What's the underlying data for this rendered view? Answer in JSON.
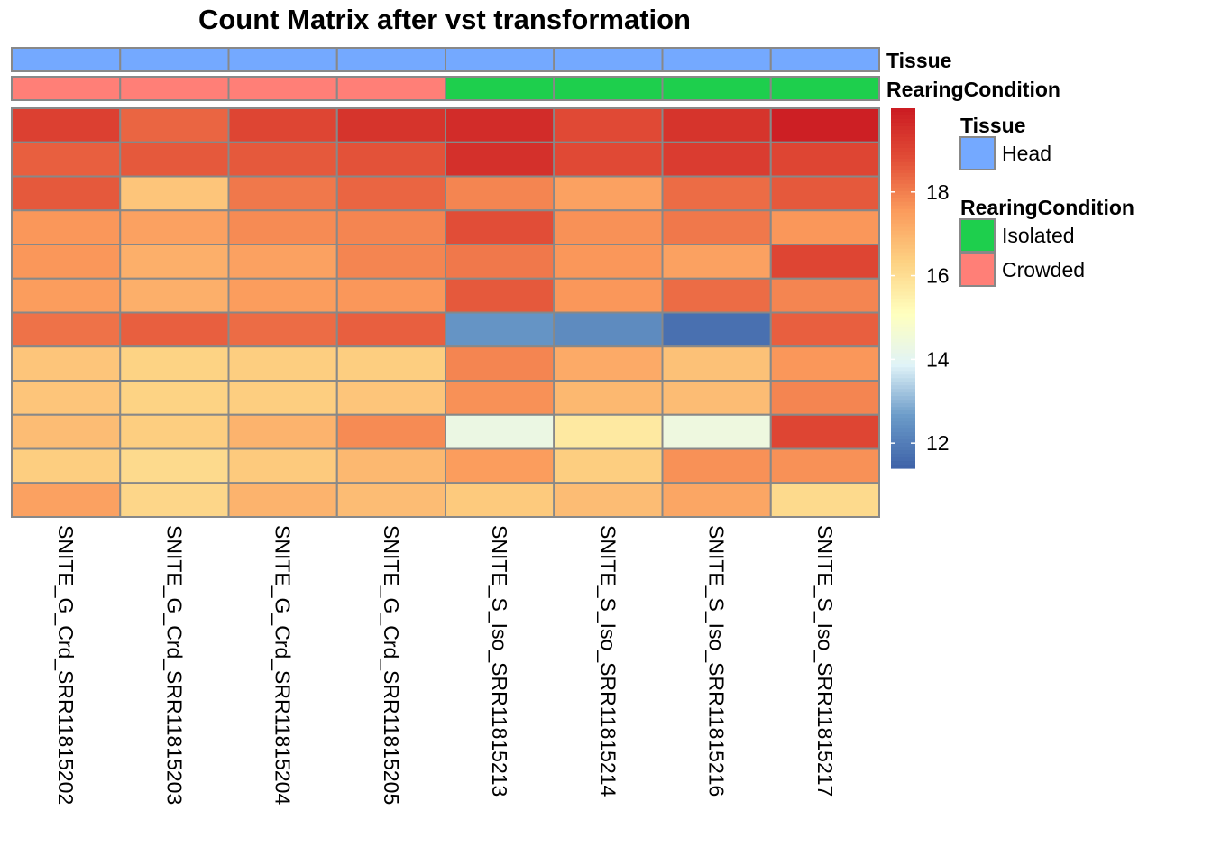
{
  "chart_data": {
    "type": "heatmap",
    "title": "Count Matrix after vst transformation",
    "columns": [
      "SNITE_G_Crd_SRR11815202",
      "SNITE_G_Crd_SRR11815203",
      "SNITE_G_Crd_SRR11815204",
      "SNITE_G_Crd_SRR11815205",
      "SNITE_S_Iso_SRR11815213",
      "SNITE_S_Iso_SRR11815214",
      "SNITE_S_Iso_SRR11815216",
      "SNITE_S_Iso_SRR11815217"
    ],
    "values": [
      [
        19.1,
        18.4,
        19.0,
        19.4,
        19.6,
        18.9,
        19.4,
        19.9
      ],
      [
        18.5,
        18.6,
        18.6,
        18.7,
        19.5,
        18.9,
        19.2,
        19.0
      ],
      [
        18.6,
        16.6,
        18.1,
        18.4,
        17.9,
        17.4,
        18.3,
        18.6
      ],
      [
        17.6,
        17.4,
        17.8,
        17.9,
        18.8,
        17.7,
        18.1,
        17.6
      ],
      [
        17.6,
        17.1,
        17.4,
        17.9,
        18.1,
        17.6,
        17.4,
        19.0
      ],
      [
        17.5,
        17.1,
        17.5,
        17.6,
        18.6,
        17.6,
        18.3,
        17.9
      ],
      [
        18.2,
        18.5,
        18.3,
        18.5,
        12.5,
        12.3,
        11.7,
        18.5
      ],
      [
        16.6,
        16.3,
        16.4,
        16.4,
        17.9,
        17.2,
        16.7,
        17.6
      ],
      [
        16.6,
        16.3,
        16.4,
        16.6,
        17.7,
        16.9,
        16.8,
        17.9
      ],
      [
        16.8,
        16.4,
        17.0,
        17.8,
        14.3,
        15.7,
        14.4,
        19.0
      ],
      [
        16.4,
        16.1,
        16.5,
        16.9,
        17.5,
        16.4,
        17.7,
        17.7
      ],
      [
        17.4,
        16.2,
        17.0,
        16.8,
        16.5,
        16.8,
        17.3,
        16.1
      ]
    ],
    "color_scale": {
      "min": 11.4,
      "max": 20.0,
      "ticks": [
        12,
        14,
        16,
        18
      ],
      "stops": [
        "#3E62A8",
        "#6A9AC8",
        "#E0F3F8",
        "#FFFFBF",
        "#FDD283",
        "#FB9B5C",
        "#E24E37",
        "#CB1B22"
      ]
    },
    "annotations": [
      {
        "name": "Tissue",
        "values": [
          "Head",
          "Head",
          "Head",
          "Head",
          "Head",
          "Head",
          "Head",
          "Head"
        ]
      },
      {
        "name": "RearingCondition",
        "values": [
          "Crowded",
          "Crowded",
          "Crowded",
          "Crowded",
          "Isolated",
          "Isolated",
          "Isolated",
          "Isolated"
        ]
      }
    ],
    "legend": [
      {
        "title": "Tissue",
        "items": [
          {
            "label": "Head",
            "color": "#74A9FF"
          }
        ]
      },
      {
        "title": "RearingCondition",
        "items": [
          {
            "label": "Isolated",
            "color": "#1ECF4D"
          },
          {
            "label": "Crowded",
            "color": "#FF7F77"
          }
        ]
      }
    ],
    "cell_border_color": "#888888",
    "grid": true,
    "legend_position": "right"
  }
}
